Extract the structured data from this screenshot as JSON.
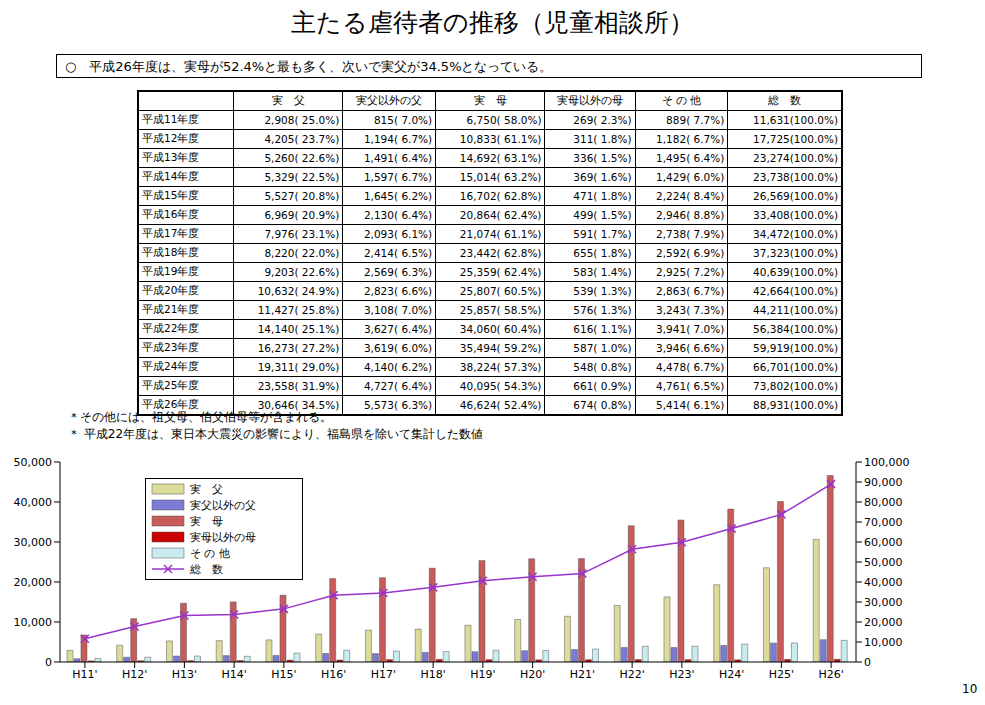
{
  "title": "主たる虐待者の推移（児童相談所）",
  "note": "○　平成26年度は、実母が52.4%と最も多く、次いで実父が34.5%となっている。",
  "table": {
    "columns": [
      "実　父",
      "実父以外の父",
      "実　母",
      "実母以外の母",
      "そ の 他",
      "総　数"
    ],
    "rows": [
      {
        "label": "平成11年度",
        "cells": [
          "2,908( 25.0%)",
          "815( 7.0%)",
          "6,750( 58.0%)",
          "269( 2.3%)",
          "889( 7.7%)",
          "11,631(100.0%)"
        ]
      },
      {
        "label": "平成12年度",
        "cells": [
          "4,205( 23.7%)",
          "1,194( 6.7%)",
          "10,833( 61.1%)",
          "311( 1.8%)",
          "1,182( 6.7%)",
          "17,725(100.0%)"
        ]
      },
      {
        "label": "平成13年度",
        "cells": [
          "5,260( 22.6%)",
          "1,491( 6.4%)",
          "14,692( 63.1%)",
          "336( 1.5%)",
          "1,495( 6.4%)",
          "23,274(100.0%)"
        ]
      },
      {
        "label": "平成14年度",
        "cells": [
          "5,329( 22.5%)",
          "1,597( 6.7%)",
          "15,014( 63.2%)",
          "369( 1.6%)",
          "1,429( 6.0%)",
          "23,738(100.0%)"
        ]
      },
      {
        "label": "平成15年度",
        "cells": [
          "5,527( 20.8%)",
          "1,645( 6.2%)",
          "16,702( 62.8%)",
          "471( 1.8%)",
          "2,224( 8.4%)",
          "26,569(100.0%)"
        ]
      },
      {
        "label": "平成16年度",
        "cells": [
          "6,969( 20.9%)",
          "2,130( 6.4%)",
          "20,864( 62.4%)",
          "499( 1.5%)",
          "2,946( 8.8%)",
          "33,408(100.0%)"
        ]
      },
      {
        "label": "平成17年度",
        "cells": [
          "7,976( 23.1%)",
          "2,093( 6.1%)",
          "21,074( 61.1%)",
          "591( 1.7%)",
          "2,738( 7.9%)",
          "34,472(100.0%)"
        ]
      },
      {
        "label": "平成18年度",
        "cells": [
          "8,220( 22.0%)",
          "2,414( 6.5%)",
          "23,442( 62.8%)",
          "655( 1.8%)",
          "2,592( 6.9%)",
          "37,323(100.0%)"
        ]
      },
      {
        "label": "平成19年度",
        "cells": [
          "9,203( 22.6%)",
          "2,569( 6.3%)",
          "25,359( 62.4%)",
          "583( 1.4%)",
          "2,925( 7.2%)",
          "40,639(100.0%)"
        ]
      },
      {
        "label": "平成20年度",
        "cells": [
          "10,632( 24.9%)",
          "2,823( 6.6%)",
          "25,807( 60.5%)",
          "539( 1.3%)",
          "2,863( 6.7%)",
          "42,664(100.0%)"
        ]
      },
      {
        "label": "平成21年度",
        "cells": [
          "11,427( 25.8%)",
          "3,108( 7.0%)",
          "25,857( 58.5%)",
          "576( 1.3%)",
          "3,243( 7.3%)",
          "44,211(100.0%)"
        ]
      },
      {
        "label": "平成22年度",
        "cells": [
          "14,140( 25.1%)",
          "3,627( 6.4%)",
          "34,060( 60.4%)",
          "616( 1.1%)",
          "3,941( 7.0%)",
          "56,384(100.0%)"
        ]
      },
      {
        "label": "平成23年度",
        "cells": [
          "16,273( 27.2%)",
          "3,619( 6.0%)",
          "35,494( 59.2%)",
          "587( 1.0%)",
          "3,946( 6.6%)",
          "59,919(100.0%)"
        ]
      },
      {
        "label": "平成24年度",
        "cells": [
          "19,311( 29.0%)",
          "4,140( 6.2%)",
          "38,224( 57.3%)",
          "548( 0.8%)",
          "4,478( 6.7%)",
          "66,701(100.0%)"
        ]
      },
      {
        "label": "平成25年度",
        "cells": [
          "23,558( 31.9%)",
          "4,727( 6.4%)",
          "40,095( 54.3%)",
          "661( 0.9%)",
          "4,761( 6.5%)",
          "73,802(100.0%)"
        ]
      },
      {
        "label": "平成26年度",
        "cells": [
          "30,646( 34.5%)",
          "5,573( 6.3%)",
          "46,624( 52.4%)",
          "674( 0.8%)",
          "5,414( 6.1%)",
          "88,931(100.0%)"
        ]
      }
    ]
  },
  "footnotes": [
    "＊その他には、祖父母、伯父伯母等が含まれる。",
    "＊ 平成22年度は、東日本大震災の影響により、福島県を除いて集計した数値"
  ],
  "chart_data": {
    "type": "bar",
    "categories": [
      "H11'",
      "H12'",
      "H13'",
      "H14'",
      "H15'",
      "H16'",
      "H17'",
      "H18'",
      "H19'",
      "H20'",
      "H21'",
      "H22'",
      "H23'",
      "H24'",
      "H25'",
      "H26'"
    ],
    "series": [
      {
        "name": "実　父",
        "color": "#dcdc9a",
        "values": [
          2908,
          4205,
          5260,
          5329,
          5527,
          6969,
          7976,
          8220,
          9203,
          10632,
          11427,
          14140,
          16273,
          19311,
          23558,
          30646
        ]
      },
      {
        "name": "実父以外の父",
        "color": "#7b7bd6",
        "values": [
          815,
          1194,
          1491,
          1597,
          1645,
          2130,
          2093,
          2414,
          2569,
          2823,
          3108,
          3627,
          3619,
          4140,
          4727,
          5573
        ]
      },
      {
        "name": "実　母",
        "color": "#c85a5a",
        "values": [
          6750,
          10833,
          14692,
          15014,
          16702,
          20864,
          21074,
          23442,
          25359,
          25807,
          25857,
          34060,
          35494,
          38224,
          40095,
          46624
        ]
      },
      {
        "name": "実母以外の母",
        "color": "#cc0000",
        "values": [
          269,
          311,
          336,
          369,
          471,
          499,
          591,
          655,
          583,
          539,
          576,
          616,
          587,
          548,
          661,
          674
        ]
      },
      {
        "name": "そ の 他",
        "color": "#c8ecf0",
        "values": [
          889,
          1182,
          1495,
          1429,
          2224,
          2946,
          2738,
          2592,
          2925,
          2863,
          3243,
          3941,
          3946,
          4478,
          4761,
          5414
        ]
      },
      {
        "name": "総　数",
        "color": "#9933cc",
        "type": "line",
        "marker": "x",
        "axis": "y2",
        "values": [
          11631,
          17725,
          23274,
          23738,
          26569,
          33408,
          34472,
          37323,
          40639,
          42664,
          44211,
          56384,
          59919,
          66701,
          73802,
          88931
        ]
      }
    ],
    "ylim": [
      0,
      50000
    ],
    "yticks": [
      0,
      {
        "value": 10000,
        "label": "10,000"
      },
      {
        "value": 20000,
        "label": "20,000"
      },
      {
        "value": 30000,
        "label": "30,000"
      },
      {
        "value": 40000,
        "label": "40,000"
      },
      {
        "value": 50000,
        "label": "50,000"
      }
    ],
    "y2lim": [
      0,
      100000
    ],
    "y2ticks": [
      0,
      {
        "value": 10000,
        "label": "10,000"
      },
      {
        "value": 20000,
        "label": "20,000"
      },
      {
        "value": 30000,
        "label": "30,000"
      },
      {
        "value": 40000,
        "label": "40,000"
      },
      {
        "value": 50000,
        "label": "50,000"
      },
      {
        "value": 60000,
        "label": "60,000"
      },
      {
        "value": 70000,
        "label": "70,000"
      },
      {
        "value": 80000,
        "label": "80,000"
      },
      {
        "value": 90000,
        "label": "90,000"
      },
      {
        "value": 100000,
        "label": "100,000"
      }
    ],
    "grid": false,
    "legend": "upper left"
  },
  "page_number": "10"
}
